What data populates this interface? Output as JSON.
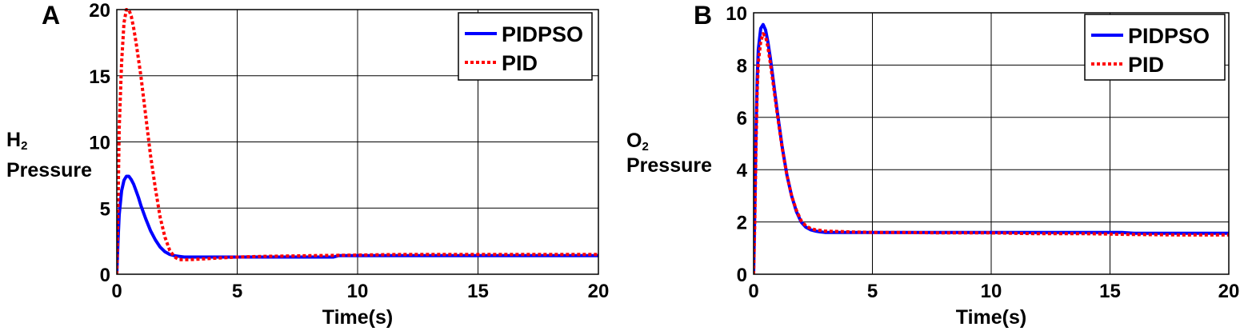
{
  "colors": {
    "pidpso": "#0000ff",
    "pid": "#ff0000"
  },
  "chart_data": [
    {
      "type": "line",
      "panel_label": "A",
      "xlabel": "Time(s)",
      "ylabel_main": "H",
      "ylabel_sub": "2",
      "ylabel_second": "Pressure",
      "xlim": [
        0,
        20
      ],
      "ylim": [
        0,
        20
      ],
      "xticks": [
        "0",
        "5",
        "10",
        "15",
        "20"
      ],
      "yticks": [
        "0",
        "5",
        "10",
        "15",
        "20"
      ],
      "grid": true,
      "legend_position": "top-right",
      "series": [
        {
          "name": "PIDPSO",
          "style": "solid",
          "x": [
            0,
            0.05,
            0.1,
            0.2,
            0.3,
            0.4,
            0.5,
            0.6,
            0.7,
            0.8,
            0.9,
            1.0,
            1.2,
            1.4,
            1.6,
            1.8,
            2.0,
            2.2,
            2.4,
            2.6,
            2.8,
            3.0,
            4,
            5,
            6,
            7,
            8,
            9,
            9.2,
            10,
            12,
            14,
            16,
            18,
            20
          ],
          "y": [
            0,
            2.5,
            4.5,
            6.3,
            7.1,
            7.4,
            7.4,
            7.15,
            6.8,
            6.3,
            5.8,
            5.2,
            4.2,
            3.3,
            2.6,
            2.05,
            1.7,
            1.5,
            1.4,
            1.35,
            1.3,
            1.3,
            1.3,
            1.3,
            1.3,
            1.3,
            1.3,
            1.3,
            1.4,
            1.4,
            1.4,
            1.4,
            1.4,
            1.4,
            1.4
          ]
        },
        {
          "name": "PID",
          "style": "dotted",
          "x": [
            0,
            0.05,
            0.1,
            0.2,
            0.3,
            0.4,
            0.5,
            0.6,
            0.7,
            0.8,
            1.0,
            1.2,
            1.4,
            1.6,
            1.8,
            2.0,
            2.2,
            2.4,
            2.6,
            2.8,
            3.0,
            3.5,
            4,
            5,
            6,
            8,
            10,
            12,
            14,
            16,
            18,
            20
          ],
          "y": [
            0,
            5,
            11,
            16,
            19,
            20,
            20,
            19.5,
            18.6,
            17.5,
            15,
            12,
            9,
            6.5,
            4.3,
            2.8,
            1.8,
            1.3,
            1.1,
            1.1,
            1.1,
            1.15,
            1.2,
            1.3,
            1.35,
            1.4,
            1.45,
            1.5,
            1.5,
            1.5,
            1.5,
            1.5
          ]
        }
      ]
    },
    {
      "type": "line",
      "panel_label": "B",
      "xlabel": "Time(s)",
      "ylabel_main": "O",
      "ylabel_sub": "2",
      "ylabel_second": "Pressure",
      "xlim": [
        0,
        20
      ],
      "ylim": [
        0,
        10
      ],
      "xticks": [
        "0",
        "5",
        "10",
        "15",
        "20"
      ],
      "yticks": [
        "0",
        "2",
        "4",
        "6",
        "8",
        "10"
      ],
      "grid": true,
      "legend_position": "top-right",
      "series": [
        {
          "name": "PIDPSO",
          "style": "solid",
          "x": [
            0,
            0.05,
            0.1,
            0.15,
            0.2,
            0.3,
            0.4,
            0.5,
            0.6,
            0.7,
            0.8,
            1.0,
            1.2,
            1.4,
            1.6,
            1.8,
            2.0,
            2.2,
            2.4,
            2.6,
            2.8,
            3.0,
            4,
            5,
            6,
            8,
            10,
            12,
            14,
            15.5,
            16,
            18,
            20
          ],
          "y": [
            0,
            2.5,
            5.5,
            7.5,
            8.6,
            9.4,
            9.55,
            9.35,
            8.9,
            8.3,
            7.6,
            6.2,
            4.9,
            3.8,
            3.0,
            2.4,
            2.0,
            1.8,
            1.7,
            1.65,
            1.62,
            1.6,
            1.6,
            1.6,
            1.6,
            1.6,
            1.6,
            1.6,
            1.6,
            1.6,
            1.57,
            1.57,
            1.57
          ]
        },
        {
          "name": "PID",
          "style": "dotted",
          "x": [
            0,
            0.05,
            0.1,
            0.15,
            0.2,
            0.3,
            0.4,
            0.5,
            0.6,
            0.7,
            0.8,
            1.0,
            1.2,
            1.4,
            1.6,
            1.8,
            2.0,
            2.2,
            2.4,
            2.6,
            2.8,
            3.0,
            4,
            5,
            6,
            8,
            10,
            12,
            14,
            16,
            18,
            20
          ],
          "y": [
            0,
            2.0,
            4.8,
            7.0,
            8.1,
            8.9,
            9.2,
            9.1,
            8.7,
            8.1,
            7.45,
            6.1,
            4.85,
            3.8,
            3.0,
            2.45,
            2.05,
            1.85,
            1.75,
            1.7,
            1.68,
            1.65,
            1.62,
            1.6,
            1.6,
            1.58,
            1.58,
            1.55,
            1.55,
            1.52,
            1.5,
            1.5
          ]
        }
      ]
    }
  ]
}
